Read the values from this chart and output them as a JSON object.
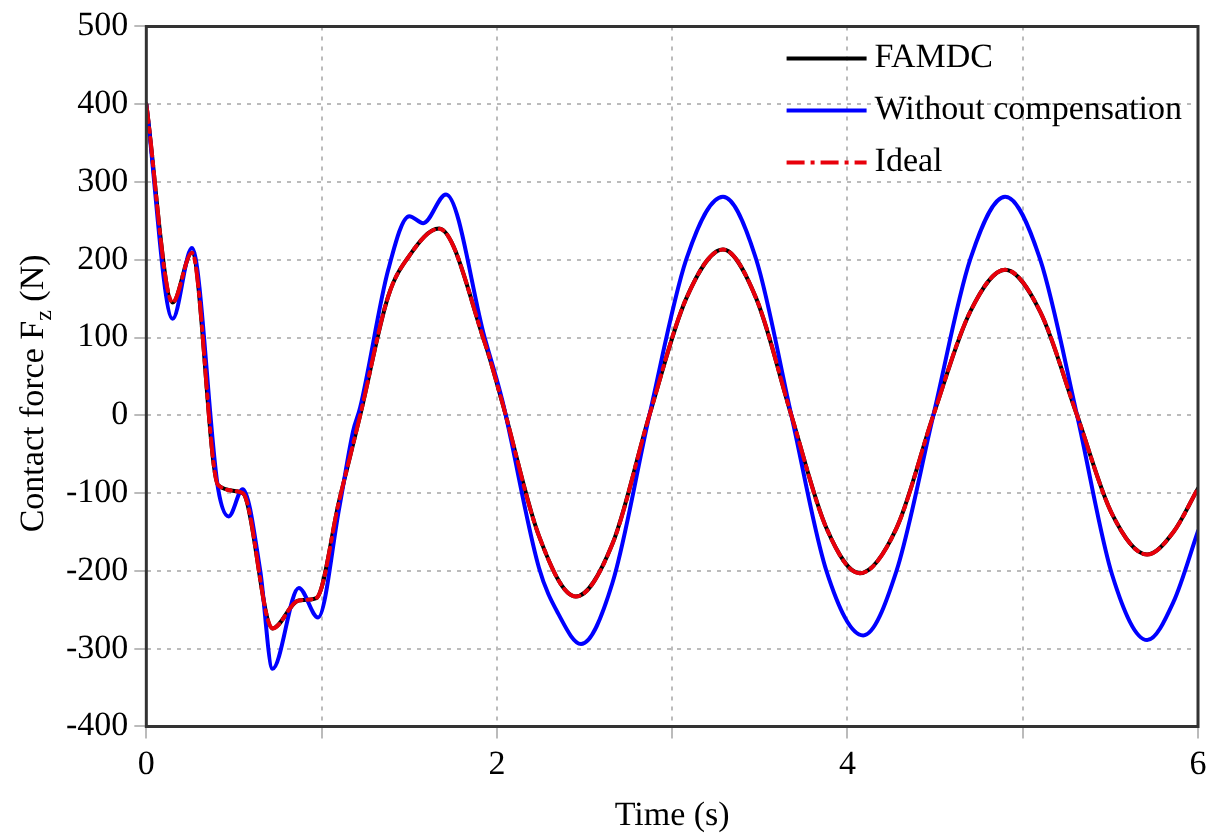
{
  "chart_data": {
    "type": "line",
    "xlabel": "Time (s)",
    "ylabel": "Contact force F$_{z}$ (N)",
    "xlim": [
      0,
      6
    ],
    "xticks": [
      0,
      {
        "value": 1,
        "label": null
      },
      2,
      {
        "value": 3,
        "label": null
      },
      4,
      {
        "value": 5,
        "label": null
      },
      6
    ],
    "ylim": [
      -400,
      500
    ],
    "yticks": [
      -400,
      -300,
      -200,
      -100,
      0,
      100,
      200,
      300,
      400,
      500
    ],
    "grid": true,
    "legend": "top right",
    "marker": "none",
    "series": [
      {
        "name": "FAMDC",
        "color": "#000000",
        "line_style": "solid",
        "x": [
          0,
          0.15,
          0.26,
          0.41,
          0.55,
          0.72,
          0.87,
          0.97,
          1.1,
          1.22,
          1.38,
          1.5,
          1.67,
          1.93,
          2.03,
          2.24,
          2.45,
          2.66,
          2.87,
          3.08,
          3.29,
          3.48,
          3.68,
          3.88,
          4.07,
          4.28,
          4.49,
          4.7,
          4.9,
          5.1,
          5.31,
          5.51,
          5.71,
          5.86,
          6
        ],
        "values": [
          400,
          145,
          209,
          -90,
          -100,
          -274,
          -238,
          -235,
          -110,
          0,
          153,
          205,
          240,
          94,
          17,
          -155,
          -233,
          -165,
          0,
          150,
          213,
          150,
          0,
          -145,
          -203,
          -145,
          0,
          133,
          187,
          133,
          0,
          -127,
          -179,
          -150,
          -94
        ]
      },
      {
        "name": "Without compensation",
        "color": "#0000ff",
        "line_style": "solid",
        "x": [
          0,
          0.15,
          0.26,
          0.41,
          0.47,
          0.55,
          0.65,
          0.72,
          0.87,
          0.98,
          1.1,
          1.18,
          1.22,
          1.38,
          1.5,
          1.58,
          1.71,
          1.93,
          2.03,
          2.24,
          2.35,
          2.48,
          2.66,
          2.87,
          3.08,
          3.29,
          3.48,
          3.68,
          3.88,
          4.09,
          4.28,
          4.49,
          4.7,
          4.9,
          5.1,
          5.31,
          5.51,
          5.71,
          5.86,
          6
        ],
        "values": [
          400,
          124,
          215,
          -95,
          -130,
          -95,
          -200,
          -326,
          -222,
          -260,
          -120,
          -20,
          10,
          187,
          256,
          247,
          284,
          100,
          20,
          -196,
          -255,
          -294,
          -215,
          0,
          200,
          281,
          200,
          0,
          -200,
          -283,
          -200,
          0,
          200,
          281,
          200,
          0,
          -205,
          -289,
          -240,
          -149
        ]
      },
      {
        "name": "Ideal",
        "color": "#e8000b",
        "line_style": "dashed",
        "x": [
          0,
          0.15,
          0.26,
          0.41,
          0.55,
          0.72,
          0.87,
          0.97,
          1.1,
          1.22,
          1.38,
          1.5,
          1.67,
          1.93,
          2.03,
          2.24,
          2.45,
          2.66,
          2.87,
          3.08,
          3.29,
          3.48,
          3.68,
          3.88,
          4.07,
          4.28,
          4.49,
          4.7,
          4.9,
          5.1,
          5.31,
          5.51,
          5.71,
          5.86,
          6
        ],
        "values": [
          400,
          145,
          209,
          -90,
          -100,
          -274,
          -238,
          -235,
          -110,
          0,
          153,
          205,
          240,
          94,
          17,
          -155,
          -233,
          -165,
          0,
          150,
          213,
          150,
          0,
          -145,
          -203,
          -145,
          0,
          133,
          187,
          133,
          0,
          -127,
          -179,
          -150,
          -94
        ]
      }
    ]
  }
}
